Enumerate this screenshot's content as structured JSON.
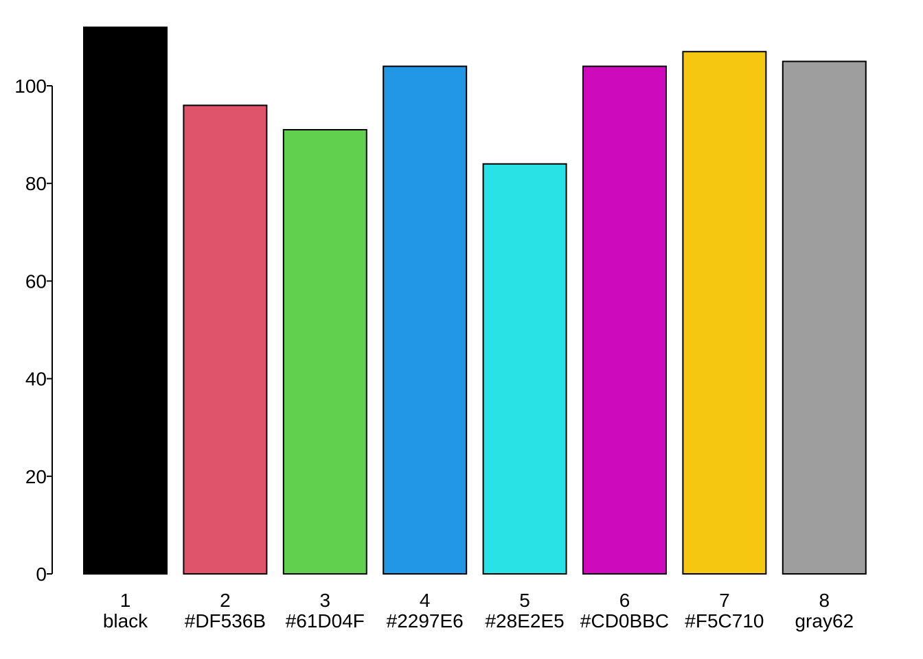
{
  "chart_data": {
    "type": "bar",
    "categories": [
      {
        "number": "1",
        "name": "black"
      },
      {
        "number": "2",
        "name": "#DF536B"
      },
      {
        "number": "3",
        "name": "#61D04F"
      },
      {
        "number": "4",
        "name": "#2297E6"
      },
      {
        "number": "5",
        "name": "#28E2E5"
      },
      {
        "number": "6",
        "name": "#CD0BBC"
      },
      {
        "number": "7",
        "name": "#F5C710"
      },
      {
        "number": "8",
        "name": "gray62"
      }
    ],
    "values": [
      112,
      96,
      91,
      104,
      84,
      104,
      107,
      105
    ],
    "colors": [
      "#000000",
      "#DF536B",
      "#61D04F",
      "#2297E6",
      "#28E2E5",
      "#CD0BBC",
      "#F5C710",
      "#9E9E9E"
    ],
    "ylim": [
      0,
      112
    ],
    "yticks": [
      "0",
      "20",
      "40",
      "60",
      "80",
      "100"
    ],
    "title": "",
    "xlabel": "",
    "ylabel": "",
    "grid": false,
    "legend": "none"
  }
}
